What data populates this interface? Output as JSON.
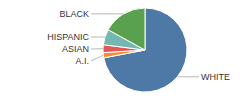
{
  "chart_data": {
    "type": "pie",
    "categories": [
      "WHITE",
      "A.I.",
      "ASIAN",
      "HISPANIC",
      "BLACK"
    ],
    "values": [
      72,
      2,
      3,
      6,
      17
    ]
  }
}
